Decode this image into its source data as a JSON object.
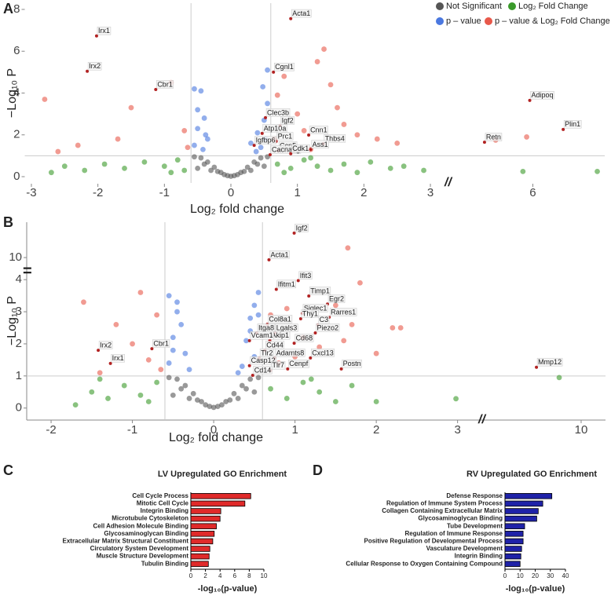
{
  "chart_data": [
    {
      "type": "scatter",
      "panel": "A",
      "xlabel": "Log₂ fold change",
      "ylabel": "−Log₁₀ P",
      "xlim": [
        -3.1,
        3.1
      ],
      "x2lim": [
        4.98,
        7.16
      ],
      "xticks": [
        -3,
        -2,
        -1,
        0,
        1,
        2,
        3
      ],
      "x2ticks": [
        6
      ],
      "ylim": [
        -0.3,
        8.3
      ],
      "yticks": [
        0,
        2,
        4,
        6,
        8
      ],
      "x_thresholds": [
        -0.6,
        0.6
      ],
      "y_threshold": 1.0,
      "highlight_color": "#b22222",
      "series": [
        {
          "name": "Not Significant",
          "color": "#555555",
          "x": [
            -0.55,
            -0.45,
            -0.35,
            -0.25,
            -0.15,
            -0.05,
            0.05,
            0.15,
            0.25,
            0.35,
            0.45,
            0.55,
            -0.5,
            -0.3,
            -0.1,
            0.1,
            0.3,
            0.5,
            -0.4,
            -0.2,
            0,
            0.2,
            0.4
          ],
          "values": [
            0.95,
            0.9,
            0.7,
            0.45,
            0.2,
            0.05,
            0.05,
            0.2,
            0.45,
            0.7,
            0.9,
            0.95,
            0.4,
            0.3,
            0.1,
            0.1,
            0.3,
            0.5,
            0.6,
            0.25,
            0.02,
            0.25,
            0.6
          ]
        },
        {
          "name": "Log₂ Fold Change",
          "color": "#3a9a2a",
          "x": [
            -2.7,
            -2.5,
            -2.2,
            -1.9,
            -1.6,
            -1.3,
            -1.0,
            -0.8,
            -0.7,
            0.7,
            0.9,
            1.1,
            1.3,
            1.5,
            1.7,
            1.9,
            2.1,
            2.4,
            2.6,
            2.9,
            -0.9,
            0.8,
            1.2,
            7.04,
            5.84
          ],
          "values": [
            0.2,
            0.5,
            0.3,
            0.6,
            0.4,
            0.7,
            0.5,
            0.8,
            0.3,
            0.6,
            0.4,
            0.8,
            0.5,
            0.3,
            0.6,
            0.2,
            0.7,
            0.4,
            0.5,
            0.3,
            0.2,
            0.2,
            0.9,
            0.25,
            0.25
          ]
        },
        {
          "name": "p – value",
          "color": "#4a78e0",
          "x": [
            -0.55,
            -0.5,
            -0.45,
            -0.4,
            -0.35,
            -0.5,
            -0.42,
            -0.38,
            -0.55,
            0.45,
            0.5,
            0.55,
            0.4,
            0.48,
            0.52,
            0.38,
            0.55,
            0.3
          ],
          "values": [
            1.5,
            2.3,
            4.1,
            2.8,
            1.8,
            3.2,
            1.3,
            2.0,
            4.2,
            1.4,
            2.7,
            3.5,
            2.1,
            4.3,
            1.8,
            1.2,
            5.1,
            1.6
          ]
        },
        {
          "name": "p – value & Log₂ Fold Change",
          "color": "#e8584a",
          "x": [
            -2.8,
            -2.6,
            -2.3,
            -1.7,
            -1.5,
            -0.9,
            -0.7,
            -0.65,
            0.7,
            0.8,
            1.0,
            1.4,
            1.5,
            1.7,
            1.9,
            2.2,
            2.5,
            1.6,
            1.3,
            1.1,
            1.2,
            0.65,
            5.4,
            5.9
          ],
          "values": [
            3.7,
            1.2,
            1.5,
            1.8,
            3.3,
            4.5,
            2.2,
            1.4,
            3.9,
            4.8,
            3.0,
            6.1,
            4.4,
            2.5,
            2.0,
            1.8,
            1.6,
            3.3,
            5.5,
            2.2,
            1.3,
            1.8,
            1.75,
            1.9
          ]
        }
      ],
      "annotations": [
        {
          "text": "Acta1",
          "x": 0.9,
          "y": 7.56
        },
        {
          "text": "Irx1",
          "x": -2.02,
          "y": 6.73
        },
        {
          "text": "Irx2",
          "x": -2.16,
          "y": 5.04
        },
        {
          "text": "Cbr1",
          "x": -1.13,
          "y": 4.17
        },
        {
          "text": "Cgnl1",
          "x": 0.64,
          "y": 5.0
        },
        {
          "text": "Clec3b",
          "x": 0.52,
          "y": 2.82
        },
        {
          "text": "Igf2",
          "x": 0.74,
          "y": 2.44
        },
        {
          "text": "Atp10a",
          "x": 0.47,
          "y": 2.07
        },
        {
          "text": "Cnn1",
          "x": 1.17,
          "y": 1.99
        },
        {
          "text": "Prc1",
          "x": 0.68,
          "y": 1.69
        },
        {
          "text": "Igfbp6",
          "x": 0.35,
          "y": 1.5
        },
        {
          "text": "Ccn5",
          "x": 0.71,
          "y": 1.24
        },
        {
          "text": "Thbs4",
          "x": 1.39,
          "y": 1.58
        },
        {
          "text": "Cacna1g",
          "x": 0.59,
          "y": 1.05
        },
        {
          "text": "Cdk1",
          "x": 0.9,
          "y": 1.1
        },
        {
          "text": "Ass1",
          "x": 1.2,
          "y": 1.3
        },
        {
          "text": "Adipoq",
          "x": 5.95,
          "y": 3.65
        },
        {
          "text": "Plin1",
          "x": 6.49,
          "y": 2.26
        },
        {
          "text": "Retn",
          "x": 5.22,
          "y": 1.65
        }
      ]
    },
    {
      "type": "scatter",
      "panel": "B",
      "xlabel": "Log₂ fold change",
      "ylabel": "−Log₁₀ P",
      "xlim": [
        -2.3,
        3.1
      ],
      "x2lim": [
        8.85,
        10.3
      ],
      "xticks": [
        -2,
        -1,
        0,
        1,
        2,
        3
      ],
      "x2ticks": [
        10
      ],
      "ylim": [
        -0.35,
        4.2
      ],
      "y2lim": [
        9.6,
        11.1
      ],
      "yticks": [
        0,
        1,
        2,
        3,
        4
      ],
      "y2ticks": [
        10
      ],
      "x_thresholds": [
        -0.6,
        0.6
      ],
      "y_threshold": 1.0,
      "highlight_color": "#b22222",
      "series": [
        {
          "color": "#555555",
          "x": [
            -0.55,
            -0.45,
            -0.35,
            -0.25,
            -0.15,
            -0.05,
            0.05,
            0.15,
            0.25,
            0.35,
            0.45,
            0.55,
            -0.5,
            -0.3,
            -0.1,
            0.1,
            0.3,
            0.5,
            -0.4,
            -0.2,
            0,
            0.2,
            0.4
          ],
          "values": [
            0.95,
            0.9,
            0.7,
            0.45,
            0.2,
            0.05,
            0.05,
            0.2,
            0.45,
            0.7,
            0.9,
            0.95,
            0.4,
            0.3,
            0.1,
            0.1,
            0.3,
            0.5,
            0.6,
            0.25,
            0.02,
            0.25,
            0.6
          ]
        },
        {
          "color": "#3a9a2a",
          "x": [
            -1.7,
            -1.5,
            -1.3,
            -1.1,
            -0.9,
            -0.7,
            -1.4,
            0.7,
            0.9,
            1.1,
            1.3,
            1.5,
            1.7,
            2.0,
            2.98,
            9.73,
            -0.8,
            1.2
          ],
          "values": [
            0.1,
            0.5,
            0.3,
            0.7,
            0.4,
            0.8,
            0.9,
            0.6,
            0.3,
            0.8,
            0.5,
            0.2,
            0.7,
            0.2,
            0.29,
            0.95,
            0.2,
            0.9
          ]
        },
        {
          "color": "#4a78e0",
          "x": [
            -0.55,
            -0.5,
            -0.45,
            -0.4,
            -0.35,
            -0.3,
            -0.55,
            -0.45,
            0.35,
            0.4,
            0.45,
            0.5,
            0.55,
            0.3,
            0.5,
            0.45,
            -0.5,
            0.55
          ],
          "values": [
            1.4,
            2.2,
            3.0,
            2.6,
            1.7,
            1.2,
            3.5,
            3.3,
            1.3,
            2.1,
            2.8,
            3.2,
            3.6,
            1.1,
            1.6,
            2.4,
            1.8,
            2.9
          ]
        },
        {
          "color": "#e8584a",
          "x": [
            -1.6,
            -1.2,
            -1.0,
            -0.9,
            -0.8,
            -0.7,
            -0.65,
            -1.4,
            0.7,
            0.9,
            1.1,
            1.3,
            1.5,
            1.6,
            1.7,
            1.8,
            2.0,
            2.2,
            2.3,
            1.65,
            0.8,
            1.0
          ],
          "values": [
            3.3,
            2.6,
            2.0,
            3.6,
            1.5,
            2.9,
            1.2,
            1.1,
            2.9,
            3.1,
            2.2,
            1.9,
            3.2,
            2.1,
            2.6,
            3.9,
            1.7,
            2.5,
            2.5,
            10.3,
            1.4,
            1.6
          ]
        }
      ],
      "annotations": [
        {
          "text": "Igf2",
          "x": 0.99,
          "y": 10.76
        },
        {
          "text": "Acta1",
          "x": 0.68,
          "y": 9.93
        },
        {
          "text": "Ifit3",
          "x": 1.04,
          "y": 3.97
        },
        {
          "text": "Ifitm1",
          "x": 0.77,
          "y": 3.7
        },
        {
          "text": "Timp1",
          "x": 1.17,
          "y": 3.49
        },
        {
          "text": "Egr2",
          "x": 1.4,
          "y": 3.24
        },
        {
          "text": "Siglec1",
          "x": 1.09,
          "y": 2.95
        },
        {
          "text": "Rarres1",
          "x": 1.42,
          "y": 2.83
        },
        {
          "text": "Thy1",
          "x": 1.07,
          "y": 2.78
        },
        {
          "text": "C3",
          "x": 1.28,
          "y": 2.59
        },
        {
          "text": "Col8a1",
          "x": 0.66,
          "y": 2.61
        },
        {
          "text": "Piezo2",
          "x": 1.25,
          "y": 2.34
        },
        {
          "text": "Lgals3",
          "x": 0.75,
          "y": 2.34
        },
        {
          "text": "Itga8",
          "x": 0.53,
          "y": 2.34
        },
        {
          "text": "Akip1",
          "x": 0.69,
          "y": 2.1
        },
        {
          "text": "Vcam1",
          "x": 0.44,
          "y": 2.1
        },
        {
          "text": "Cd68",
          "x": 0.99,
          "y": 2.02
        },
        {
          "text": "Cd44",
          "x": 0.63,
          "y": 1.8
        },
        {
          "text": "Adamts8",
          "x": 0.75,
          "y": 1.56
        },
        {
          "text": "Cxcl13",
          "x": 1.19,
          "y": 1.56
        },
        {
          "text": "Tlr2",
          "x": 0.56,
          "y": 1.56
        },
        {
          "text": "Casp12",
          "x": 0.44,
          "y": 1.32
        },
        {
          "text": "Cenpf",
          "x": 0.91,
          "y": 1.22
        },
        {
          "text": "Tlr7",
          "x": 0.7,
          "y": 1.17
        },
        {
          "text": "Postn",
          "x": 1.57,
          "y": 1.22
        },
        {
          "text": "Cd14",
          "x": 0.48,
          "y": 1.02
        },
        {
          "text": "Irx2",
          "x": -1.42,
          "y": 1.8
        },
        {
          "text": "Cbr1",
          "x": -0.76,
          "y": 1.85
        },
        {
          "text": "Irx1",
          "x": -1.27,
          "y": 1.39
        },
        {
          "text": "Mmp12",
          "x": 9.45,
          "y": 1.27
        }
      ]
    },
    {
      "type": "bar",
      "panel": "C",
      "title": "LV Upregulated GO Enrichment",
      "xlabel": "-log₁₀(p-value)",
      "categories": [
        "Cell Cycle Process",
        "Mitotic Cell Cycle",
        "Integrin Binding",
        "Microtubule Cytoskeleton",
        "Cell Adhesion Molecule Binding",
        "Glycosaminoglycan Binding",
        "Extracellular Matrix Structural Constituent",
        "Circulatory System Development",
        "Muscle Structure Development",
        "Tubulin Binding"
      ],
      "values": [
        8.2,
        7.4,
        4.1,
        4.0,
        3.5,
        3.2,
        3.0,
        2.6,
        2.5,
        2.4
      ],
      "color": "#e02a2a",
      "xlim": [
        0,
        10
      ],
      "xticks": [
        0,
        2,
        4,
        6,
        8,
        10
      ]
    },
    {
      "type": "bar",
      "panel": "D",
      "title": "RV Upregulated GO Enrichment",
      "xlabel": "-log₁₀(p-value)",
      "categories": [
        "Defense Response",
        "Regulation of Immune System Process",
        "Collagen Containing Extracellular Matrix",
        "Glycosaminoglycan Binding",
        "Tube Development",
        "Regulation of Immune Response",
        "Positive Regulation of Developmental Process",
        "Vasculature Development",
        "Integrin Binding",
        "Cellular Response to Oxygen Containing Compound"
      ],
      "values": [
        31,
        25,
        22,
        21,
        13,
        12,
        12,
        11,
        10.5,
        10
      ],
      "color": "#1f22a8",
      "xlim": [
        0,
        40
      ],
      "xticks": [
        0,
        10,
        20,
        30,
        40
      ]
    }
  ]
}
